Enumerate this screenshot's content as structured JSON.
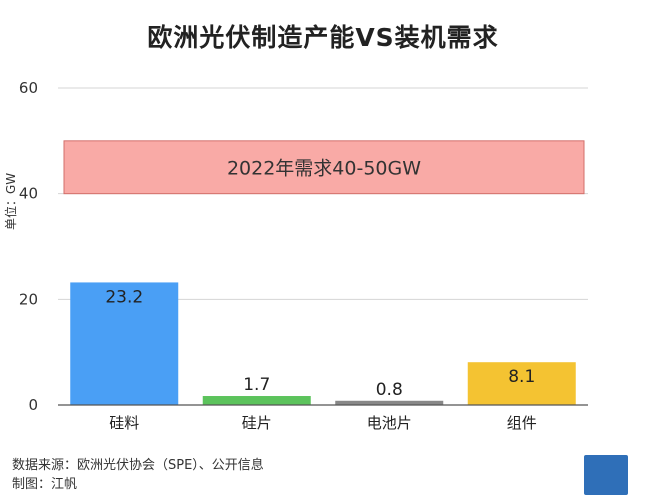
{
  "chart_data": {
    "type": "bar",
    "title": "欧洲光伏制造产能VS装机需求",
    "ylabel": "单位：GW",
    "ylim": [
      0,
      60
    ],
    "yticks": [
      0,
      20,
      40,
      60
    ],
    "categories": [
      "硅料",
      "硅片",
      "电池片",
      "组件"
    ],
    "values": [
      23.2,
      1.7,
      0.8,
      8.1
    ],
    "value_labels": [
      "23.2",
      "1.7",
      "0.8",
      "8.1"
    ],
    "bar_colors": [
      "#4a9ff5",
      "#5cc35c",
      "#888888",
      "#f4c332"
    ],
    "band": {
      "label": "2022年需求40-50GW",
      "from": 40,
      "to": 50,
      "fill": "#f9aaa6"
    },
    "grid": true
  },
  "footer": {
    "source": "数据来源：欧洲光伏协会（SPE）、公开信息",
    "author": "制图：江帆"
  }
}
